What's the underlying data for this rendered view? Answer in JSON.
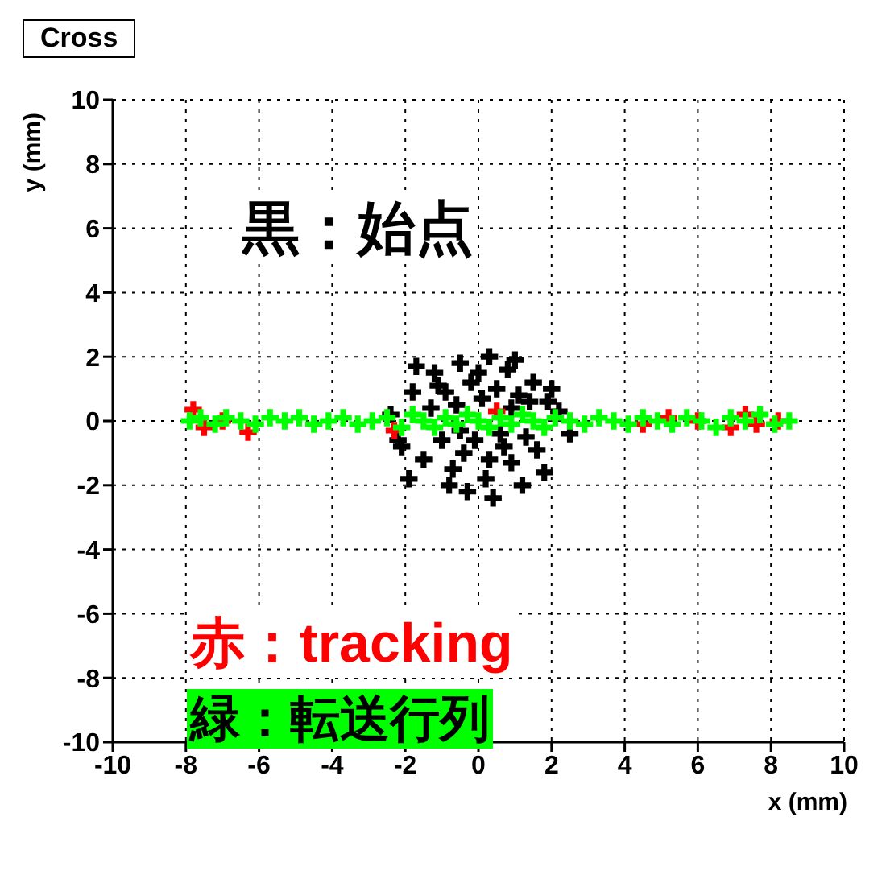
{
  "chart_data": {
    "type": "scatter",
    "title": "Cross",
    "xlabel": "x (mm)",
    "ylabel": "y (mm)",
    "marker": "cross",
    "grid": true,
    "legend": false,
    "xlim": [
      -10,
      10
    ],
    "ylim": [
      -10,
      10
    ],
    "xticks": [
      -10,
      -8,
      -6,
      -4,
      -2,
      0,
      2,
      4,
      6,
      8,
      10
    ],
    "yticks": [
      -10,
      -8,
      -6,
      -4,
      -2,
      0,
      2,
      4,
      6,
      8,
      10
    ],
    "annotations": [
      "黒：始点",
      "赤：tracking",
      "緑：転送行列"
    ],
    "series": [
      {
        "color": "#000000",
        "x": [
          -0.5,
          0.3,
          0.8,
          -1.2,
          1.5,
          -1.8,
          -0.2,
          0.5,
          1.9,
          -2.1,
          -0.9,
          0.1,
          1.1,
          2.2,
          -1.5,
          -0.7,
          0.2,
          0.9,
          1.6,
          -0.3,
          0.4,
          -1.0,
          1.3,
          -2.4,
          2.5,
          -0.4,
          0.7,
          -1.3,
          1.8,
          -1.7,
          1.0,
          -0.1,
          0.0,
          -0.6,
          0.6,
          1.4,
          -1.9,
          -0.8,
          0.3,
          1.2,
          -1.1,
          2.0,
          -2.2,
          0.9,
          -0.5
        ],
        "values": [
          1.8,
          2.0,
          1.6,
          1.5,
          1.2,
          0.9,
          1.2,
          1.0,
          0.6,
          -0.8,
          0.9,
          0.7,
          0.8,
          0.3,
          -1.2,
          -1.5,
          -1.8,
          -1.3,
          -0.9,
          -2.2,
          -2.4,
          -0.6,
          -0.5,
          0.2,
          -0.4,
          -1.0,
          -0.8,
          0.4,
          -1.6,
          1.7,
          1.9,
          -0.6,
          1.5,
          0.5,
          -0.4,
          0.6,
          -1.8,
          -2.0,
          -1.2,
          -2.0,
          1.1,
          1.0,
          -0.6,
          0.4,
          -0.3
        ]
      },
      {
        "color": "#ff0000",
        "x": [
          -7.8,
          -7.5,
          -7.0,
          -6.3,
          -2.3,
          0.5,
          4.5,
          5.2,
          6.0,
          6.9,
          7.3,
          7.6,
          8.2
        ],
        "values": [
          0.35,
          -0.2,
          0.0,
          -0.35,
          -0.3,
          0.3,
          -0.1,
          0.1,
          0.0,
          -0.2,
          0.2,
          -0.1,
          0.0
        ]
      },
      {
        "color": "#00ff00",
        "x": [
          -7.9,
          -7.6,
          -7.2,
          -6.9,
          -6.5,
          -6.1,
          -5.7,
          -5.3,
          -4.9,
          -4.5,
          -4.1,
          -3.7,
          -3.3,
          -2.9,
          -2.5,
          -2.1,
          -1.8,
          -1.5,
          -1.2,
          -0.9,
          -0.6,
          -0.3,
          0.0,
          0.3,
          0.6,
          0.9,
          1.2,
          1.5,
          1.8,
          2.1,
          2.5,
          2.9,
          3.3,
          3.7,
          4.1,
          4.5,
          4.9,
          5.3,
          5.7,
          6.1,
          6.5,
          6.9,
          7.3,
          7.7,
          8.1,
          8.5
        ],
        "values": [
          0.0,
          0.1,
          -0.1,
          0.1,
          0.0,
          -0.1,
          0.1,
          0.0,
          0.1,
          -0.1,
          0.0,
          0.1,
          -0.1,
          0.0,
          0.1,
          -0.2,
          0.2,
          0.0,
          -0.2,
          0.1,
          -0.1,
          0.2,
          0.0,
          -0.2,
          0.1,
          -0.1,
          0.2,
          0.0,
          -0.2,
          0.1,
          0.0,
          -0.1,
          0.1,
          0.0,
          -0.1,
          0.1,
          0.0,
          -0.1,
          0.1,
          0.0,
          -0.2,
          0.1,
          0.0,
          0.2,
          -0.1,
          0.0
        ]
      }
    ]
  }
}
